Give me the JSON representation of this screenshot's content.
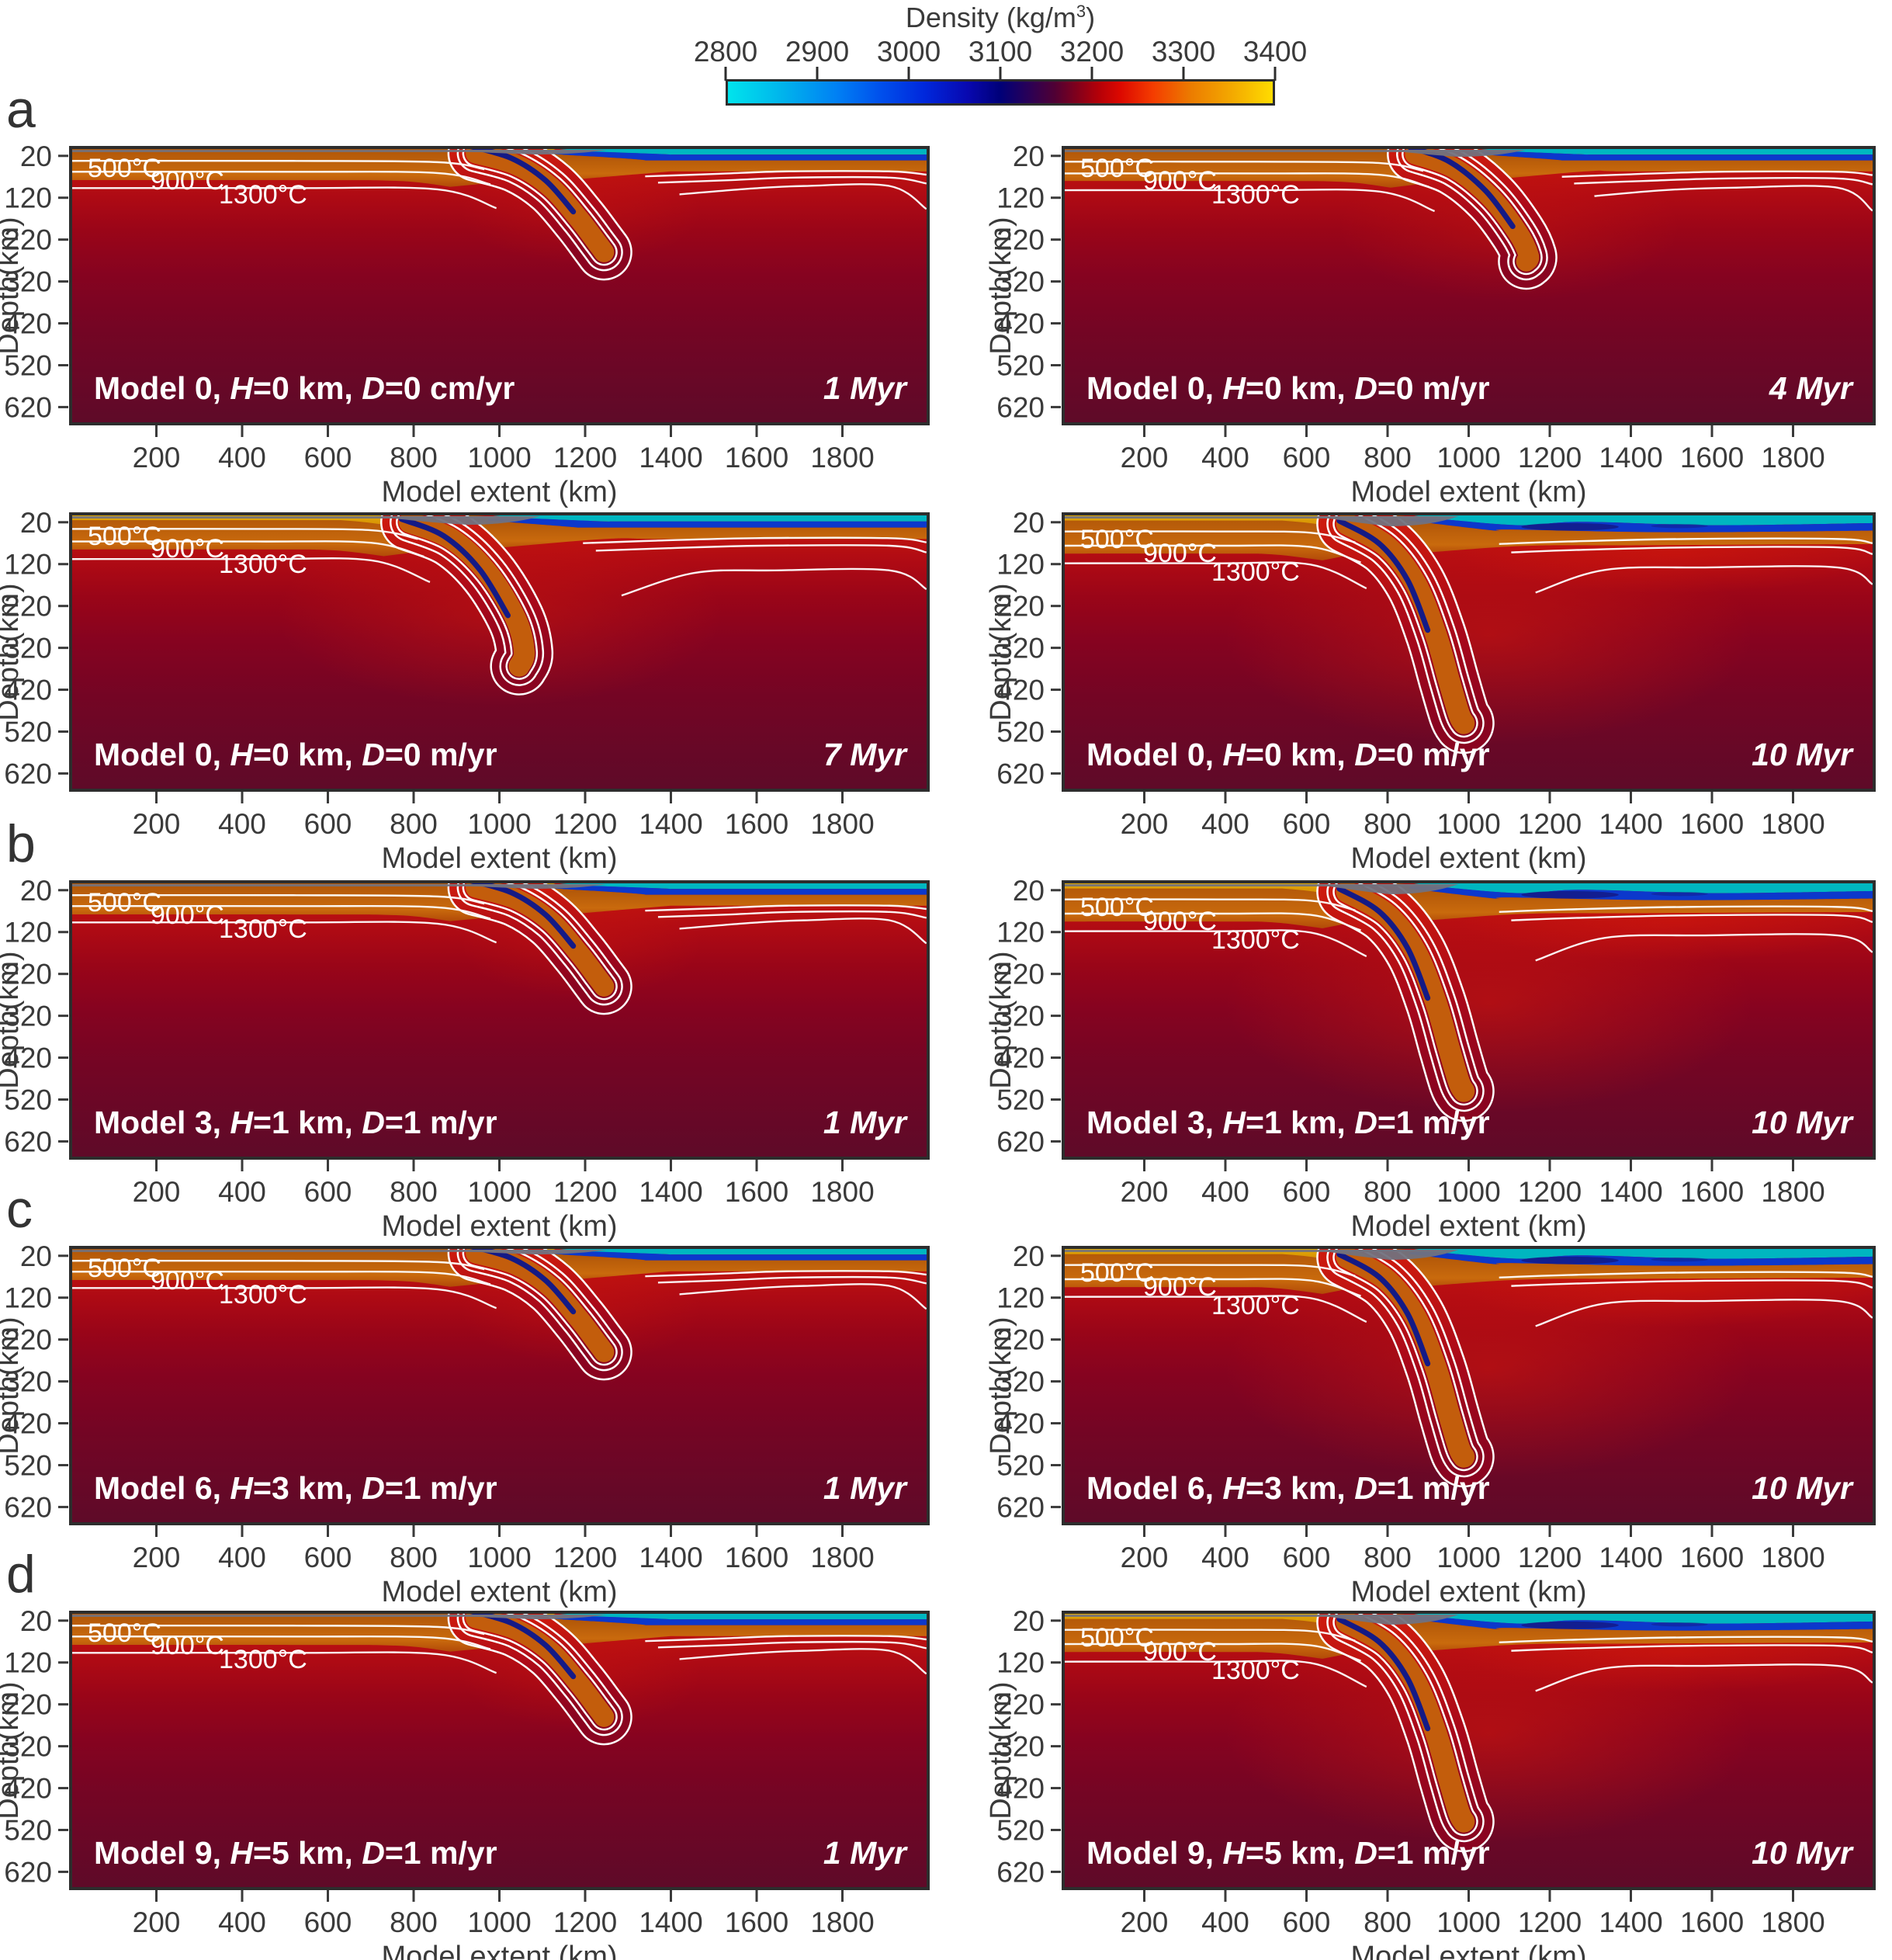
{
  "chart_data": {
    "type": "heatmap",
    "description": "Ten 2D thermomechanical subduction model snapshots showing density fields with temperature contours",
    "colorbar": {
      "title_pre": "Density (kg/m",
      "title_sup": "3",
      "title_post": ")",
      "min": 2800,
      "max": 3400,
      "ticks": [
        "2800",
        "2900",
        "3000",
        "3100",
        "3200",
        "3300",
        "3400"
      ],
      "gradient": [
        {
          "pos": 0,
          "color": "#00e4ec"
        },
        {
          "pos": 10,
          "color": "#00b4ec"
        },
        {
          "pos": 20,
          "color": "#0080f4"
        },
        {
          "pos": 28,
          "color": "#0050ec"
        },
        {
          "pos": 36,
          "color": "#0028dc"
        },
        {
          "pos": 44,
          "color": "#0808b0"
        },
        {
          "pos": 50,
          "color": "#000078"
        },
        {
          "pos": 55,
          "color": "#280058"
        },
        {
          "pos": 60,
          "color": "#500034"
        },
        {
          "pos": 64,
          "color": "#80001c"
        },
        {
          "pos": 68,
          "color": "#b40008"
        },
        {
          "pos": 72,
          "color": "#dc0800"
        },
        {
          "pos": 78,
          "color": "#f43c00"
        },
        {
          "pos": 85,
          "color": "#ec7c00"
        },
        {
          "pos": 93,
          "color": "#f4ac00"
        },
        {
          "pos": 100,
          "color": "#ffdc00"
        }
      ]
    },
    "axes": {
      "x_label": "Model extent (km)",
      "y_label": "Depth(km)",
      "x_range_km": [
        0,
        2000
      ],
      "y_range_km": [
        0,
        660
      ],
      "x_ticks": [
        "200",
        "400",
        "600",
        "800",
        "1000",
        "1200",
        "1400",
        "1600",
        "1800"
      ],
      "y_ticks": [
        "20",
        "120",
        "220",
        "320",
        "420",
        "520",
        "620"
      ]
    },
    "contour_labels": [
      "500°C",
      "900°C",
      "1300°C"
    ],
    "sections": [
      {
        "letter": "a",
        "row": 0
      },
      {
        "letter": "b",
        "row": 2
      },
      {
        "letter": "c",
        "row": 3
      },
      {
        "letter": "d",
        "row": 4
      }
    ],
    "panels": [
      {
        "section": "a",
        "model": "Model 0",
        "H": "0 km",
        "D": "0 cm/yr",
        "time": "1 Myr",
        "stage": 1,
        "features": {
          "trench_km": 1140,
          "slab_tip_km": 1240,
          "slab_tip_depth_km": 250
        }
      },
      {
        "section": "a",
        "model": "Model 0",
        "H": "0 km",
        "D": "0 m/yr",
        "time": "4 Myr",
        "stage": 4,
        "features": {
          "trench_km": 1030,
          "slab_tip_km": 1145,
          "slab_tip_depth_km": 270
        }
      },
      {
        "section": "a",
        "model": "Model 0",
        "H": "0 km",
        "D": "0 m/yr",
        "time": "7 Myr",
        "stage": 7,
        "features": {
          "trench_km": 985,
          "slab_tip_km": 1050,
          "slab_tip_depth_km": 360
        }
      },
      {
        "section": "a",
        "model": "Model 0",
        "H": "0 km",
        "D": "0 m/yr",
        "time": "10 Myr",
        "stage": 10,
        "features": {
          "trench_km": 865,
          "slab_tip_km": 985,
          "slab_tip_depth_km": 500
        }
      },
      {
        "section": "b",
        "model": "Model 3",
        "H": "1 km",
        "D": "1 m/yr",
        "time": "1 Myr",
        "stage": 1,
        "features": {
          "trench_km": 1140,
          "slab_tip_km": 1240,
          "slab_tip_depth_km": 250
        }
      },
      {
        "section": "b",
        "model": "Model 3",
        "H": "1 km",
        "D": "1 m/yr",
        "time": "10 Myr",
        "stage": 10,
        "features": {
          "trench_km": 865,
          "slab_tip_km": 985,
          "slab_tip_depth_km": 500
        }
      },
      {
        "section": "c",
        "model": "Model 6",
        "H": "3 km",
        "D": "1 m/yr",
        "time": "1 Myr",
        "stage": 1,
        "features": {
          "trench_km": 1140,
          "slab_tip_km": 1240,
          "slab_tip_depth_km": 250
        }
      },
      {
        "section": "c",
        "model": "Model 6",
        "H": "3 km",
        "D": "1 m/yr",
        "time": "10 Myr",
        "stage": 10,
        "features": {
          "trench_km": 865,
          "slab_tip_km": 985,
          "slab_tip_depth_km": 500
        }
      },
      {
        "section": "d",
        "model": "Model 9",
        "H": "5 km",
        "D": "1 m/yr",
        "time": "1 Myr",
        "stage": 1,
        "features": {
          "trench_km": 1140,
          "slab_tip_km": 1240,
          "slab_tip_depth_km": 250
        }
      },
      {
        "section": "d",
        "model": "Model 9",
        "H": "5 km",
        "D": "1 m/yr",
        "time": "10 Myr",
        "stage": 10,
        "features": {
          "trench_km": 865,
          "slab_tip_km": 985,
          "slab_tip_depth_km": 500
        }
      }
    ],
    "colors": {
      "ocean_crust_cyan": "#00b6c0",
      "ocean_crust_blue": "#0c38cc",
      "slab_crust_navy": "#141a86",
      "lithosphere_orange": "#c06009",
      "lithosphere_orange_dark": "#b05608",
      "continental_crust_yellow": "#e2ac04",
      "mantle_red": "#c41410",
      "mantle_deep": "#5e0a28",
      "halo_red": "#e41e06",
      "sticky_air_gray": "#72727e",
      "contour_white": "#ffffff",
      "panel_border": "#2d2d2d",
      "axis_text": "#3a3a3a",
      "panel_text": "#ffffff"
    }
  }
}
